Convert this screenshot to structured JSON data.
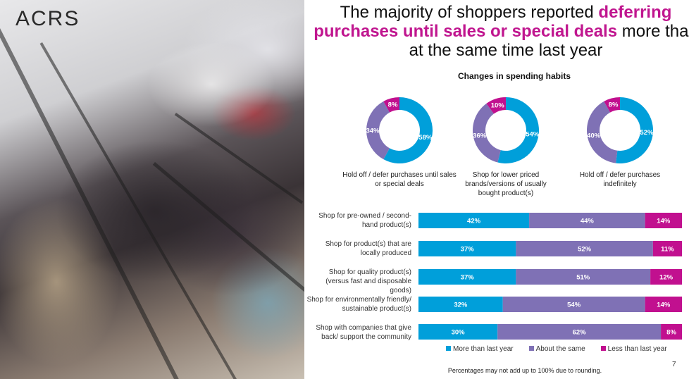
{
  "logo": "ACRS",
  "title": {
    "part1": "The majority of shoppers reported ",
    "highlight": "deferring purchases until sales or special deals",
    "part2": " more than at the same time last year"
  },
  "colors": {
    "more": "#009fda",
    "same": "#7f71b5",
    "less": "#c1108f"
  },
  "legend": [
    "More than last year",
    "About the same",
    "Less than last year"
  ],
  "footnote": "Percentages may not add up to 100% due to rounding.",
  "page_number": "7",
  "chart_data": [
    {
      "type": "pie",
      "donut": true,
      "title": "Changes in spending habits",
      "series_names": [
        "More than last year",
        "About the same",
        "Less than last year"
      ],
      "items": [
        {
          "label": "Hold off / defer purchases until sales or special deals",
          "values": [
            58,
            34,
            8
          ],
          "data_labels": [
            "58%",
            "34%",
            "8%"
          ]
        },
        {
          "label": "Shop for lower priced brands/versions of usually bought product(s)",
          "values": [
            54,
            36,
            10
          ],
          "data_labels": [
            "54%",
            "36%",
            "10%"
          ]
        },
        {
          "label": "Hold off / defer purchases indefinitely",
          "values": [
            52,
            40,
            8
          ],
          "data_labels": [
            "52%",
            "40%",
            "8%"
          ]
        }
      ]
    },
    {
      "type": "bar",
      "orientation": "horizontal",
      "stacked": true,
      "percent": true,
      "categories": [
        "Shop for pre-owned / second-hand product(s)",
        "Shop for product(s) that are locally produced",
        "Shop for quality product(s) (versus fast and disposable goods)",
        "Shop for environmentally friendly/ sustainable product(s)",
        "Shop with companies that give back/ support the community"
      ],
      "series": [
        {
          "name": "More than last year",
          "values": [
            42,
            37,
            37,
            32,
            30
          ]
        },
        {
          "name": "About the same",
          "values": [
            44,
            52,
            51,
            54,
            62
          ]
        },
        {
          "name": "Less than last year",
          "values": [
            14,
            11,
            12,
            14,
            8
          ]
        }
      ],
      "legend_position": "bottom"
    }
  ]
}
